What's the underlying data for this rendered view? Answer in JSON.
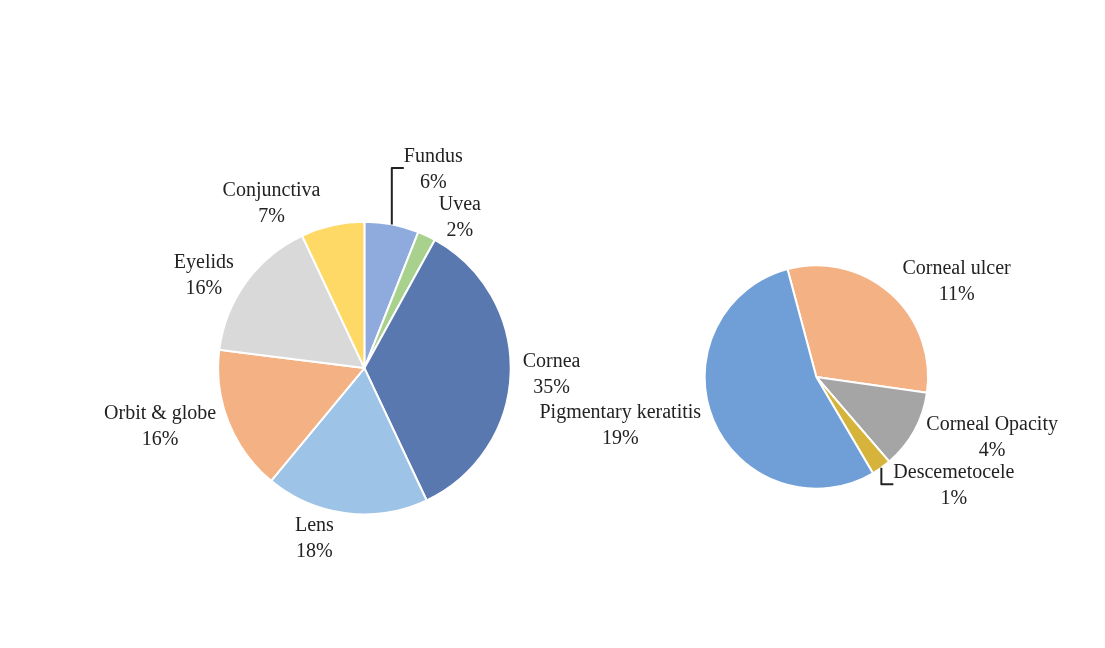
{
  "chart_data": [
    {
      "type": "pie",
      "categories": [
        "Fundus",
        "Uvea",
        "Cornea",
        "Lens",
        "Orbit & globe",
        "Eyelids",
        "Conjunctiva"
      ],
      "values": [
        6,
        2,
        35,
        18,
        16,
        16,
        7
      ],
      "value_labels": [
        "6%",
        "2%",
        "35%",
        "18%",
        "16%",
        "16%",
        "7%"
      ],
      "colors": [
        "#8faadc",
        "#a9d18e",
        "#5a78b0",
        "#9dc3e6",
        "#f4b183",
        "#d9d9d9",
        "#ffd966"
      ]
    },
    {
      "type": "pie",
      "categories": [
        "Corneal ulcer",
        "Corneal Opacity",
        "Descemetocele",
        "Pigmentary keratitis"
      ],
      "values": [
        11,
        4,
        1,
        19
      ],
      "value_labels": [
        "11%",
        "4%",
        "1%",
        "19%"
      ],
      "colors": [
        "#f4b183",
        "#a5a5a5",
        "#d6b43c",
        "#6f9fd6"
      ]
    }
  ]
}
